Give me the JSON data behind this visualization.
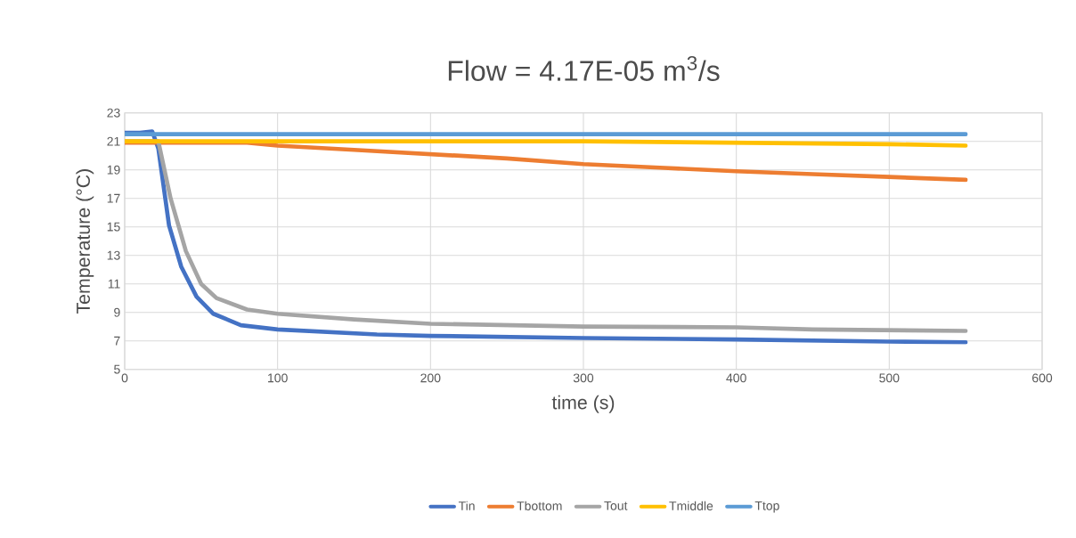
{
  "chart_data": {
    "type": "line",
    "title": "Flow = 4.17E-05 m$^{3}$/s",
    "xlabel": "time (s)",
    "ylabel": "Temperature (°C)",
    "xlim": [
      0,
      600
    ],
    "xticks": [
      0,
      100,
      200,
      300,
      400,
      500,
      600
    ],
    "ylim": [
      5,
      23
    ],
    "yticks": [
      5,
      7,
      9,
      11,
      13,
      15,
      17,
      19,
      21,
      23
    ],
    "grid": true,
    "legend": "bottom",
    "marker": "none",
    "line_style": "solid",
    "series": [
      {
        "name": "Tin",
        "color": "#4472c4",
        "x": [
          0,
          10,
          18,
          22,
          29,
          37,
          47,
          58,
          76,
          100,
          165,
          200,
          300,
          400,
          500,
          550
        ],
        "values": [
          21.6,
          21.6,
          21.7,
          20.5,
          15.1,
          12.2,
          10.1,
          8.9,
          8.1,
          7.8,
          7.45,
          7.35,
          7.2,
          7.1,
          6.95,
          6.9
        ]
      },
      {
        "name": "Tbottom",
        "color": "#ed7d31",
        "x": [
          0,
          80,
          100,
          150,
          200,
          250,
          300,
          350,
          400,
          450,
          500,
          550
        ],
        "values": [
          20.9,
          20.9,
          20.7,
          20.4,
          20.1,
          19.8,
          19.4,
          19.15,
          18.9,
          18.7,
          18.5,
          18.3
        ]
      },
      {
        "name": "Tout",
        "color": "#a5a5a5",
        "x": [
          0,
          20,
          22,
          30,
          40,
          50,
          60,
          80,
          100,
          150,
          200,
          300,
          400,
          450,
          550
        ],
        "values": [
          21.0,
          21.0,
          21.0,
          17.0,
          13.3,
          11.0,
          10.0,
          9.2,
          8.9,
          8.5,
          8.2,
          8.0,
          7.95,
          7.8,
          7.7
        ]
      },
      {
        "name": "Tmiddle",
        "color": "#ffc000",
        "x": [
          0,
          300,
          400,
          500,
          550
        ],
        "values": [
          21.0,
          21.0,
          20.9,
          20.8,
          20.7
        ]
      },
      {
        "name": "Ttop",
        "color": "#5b9bd5",
        "x": [
          0,
          550
        ],
        "values": [
          21.5,
          21.5
        ]
      }
    ]
  }
}
